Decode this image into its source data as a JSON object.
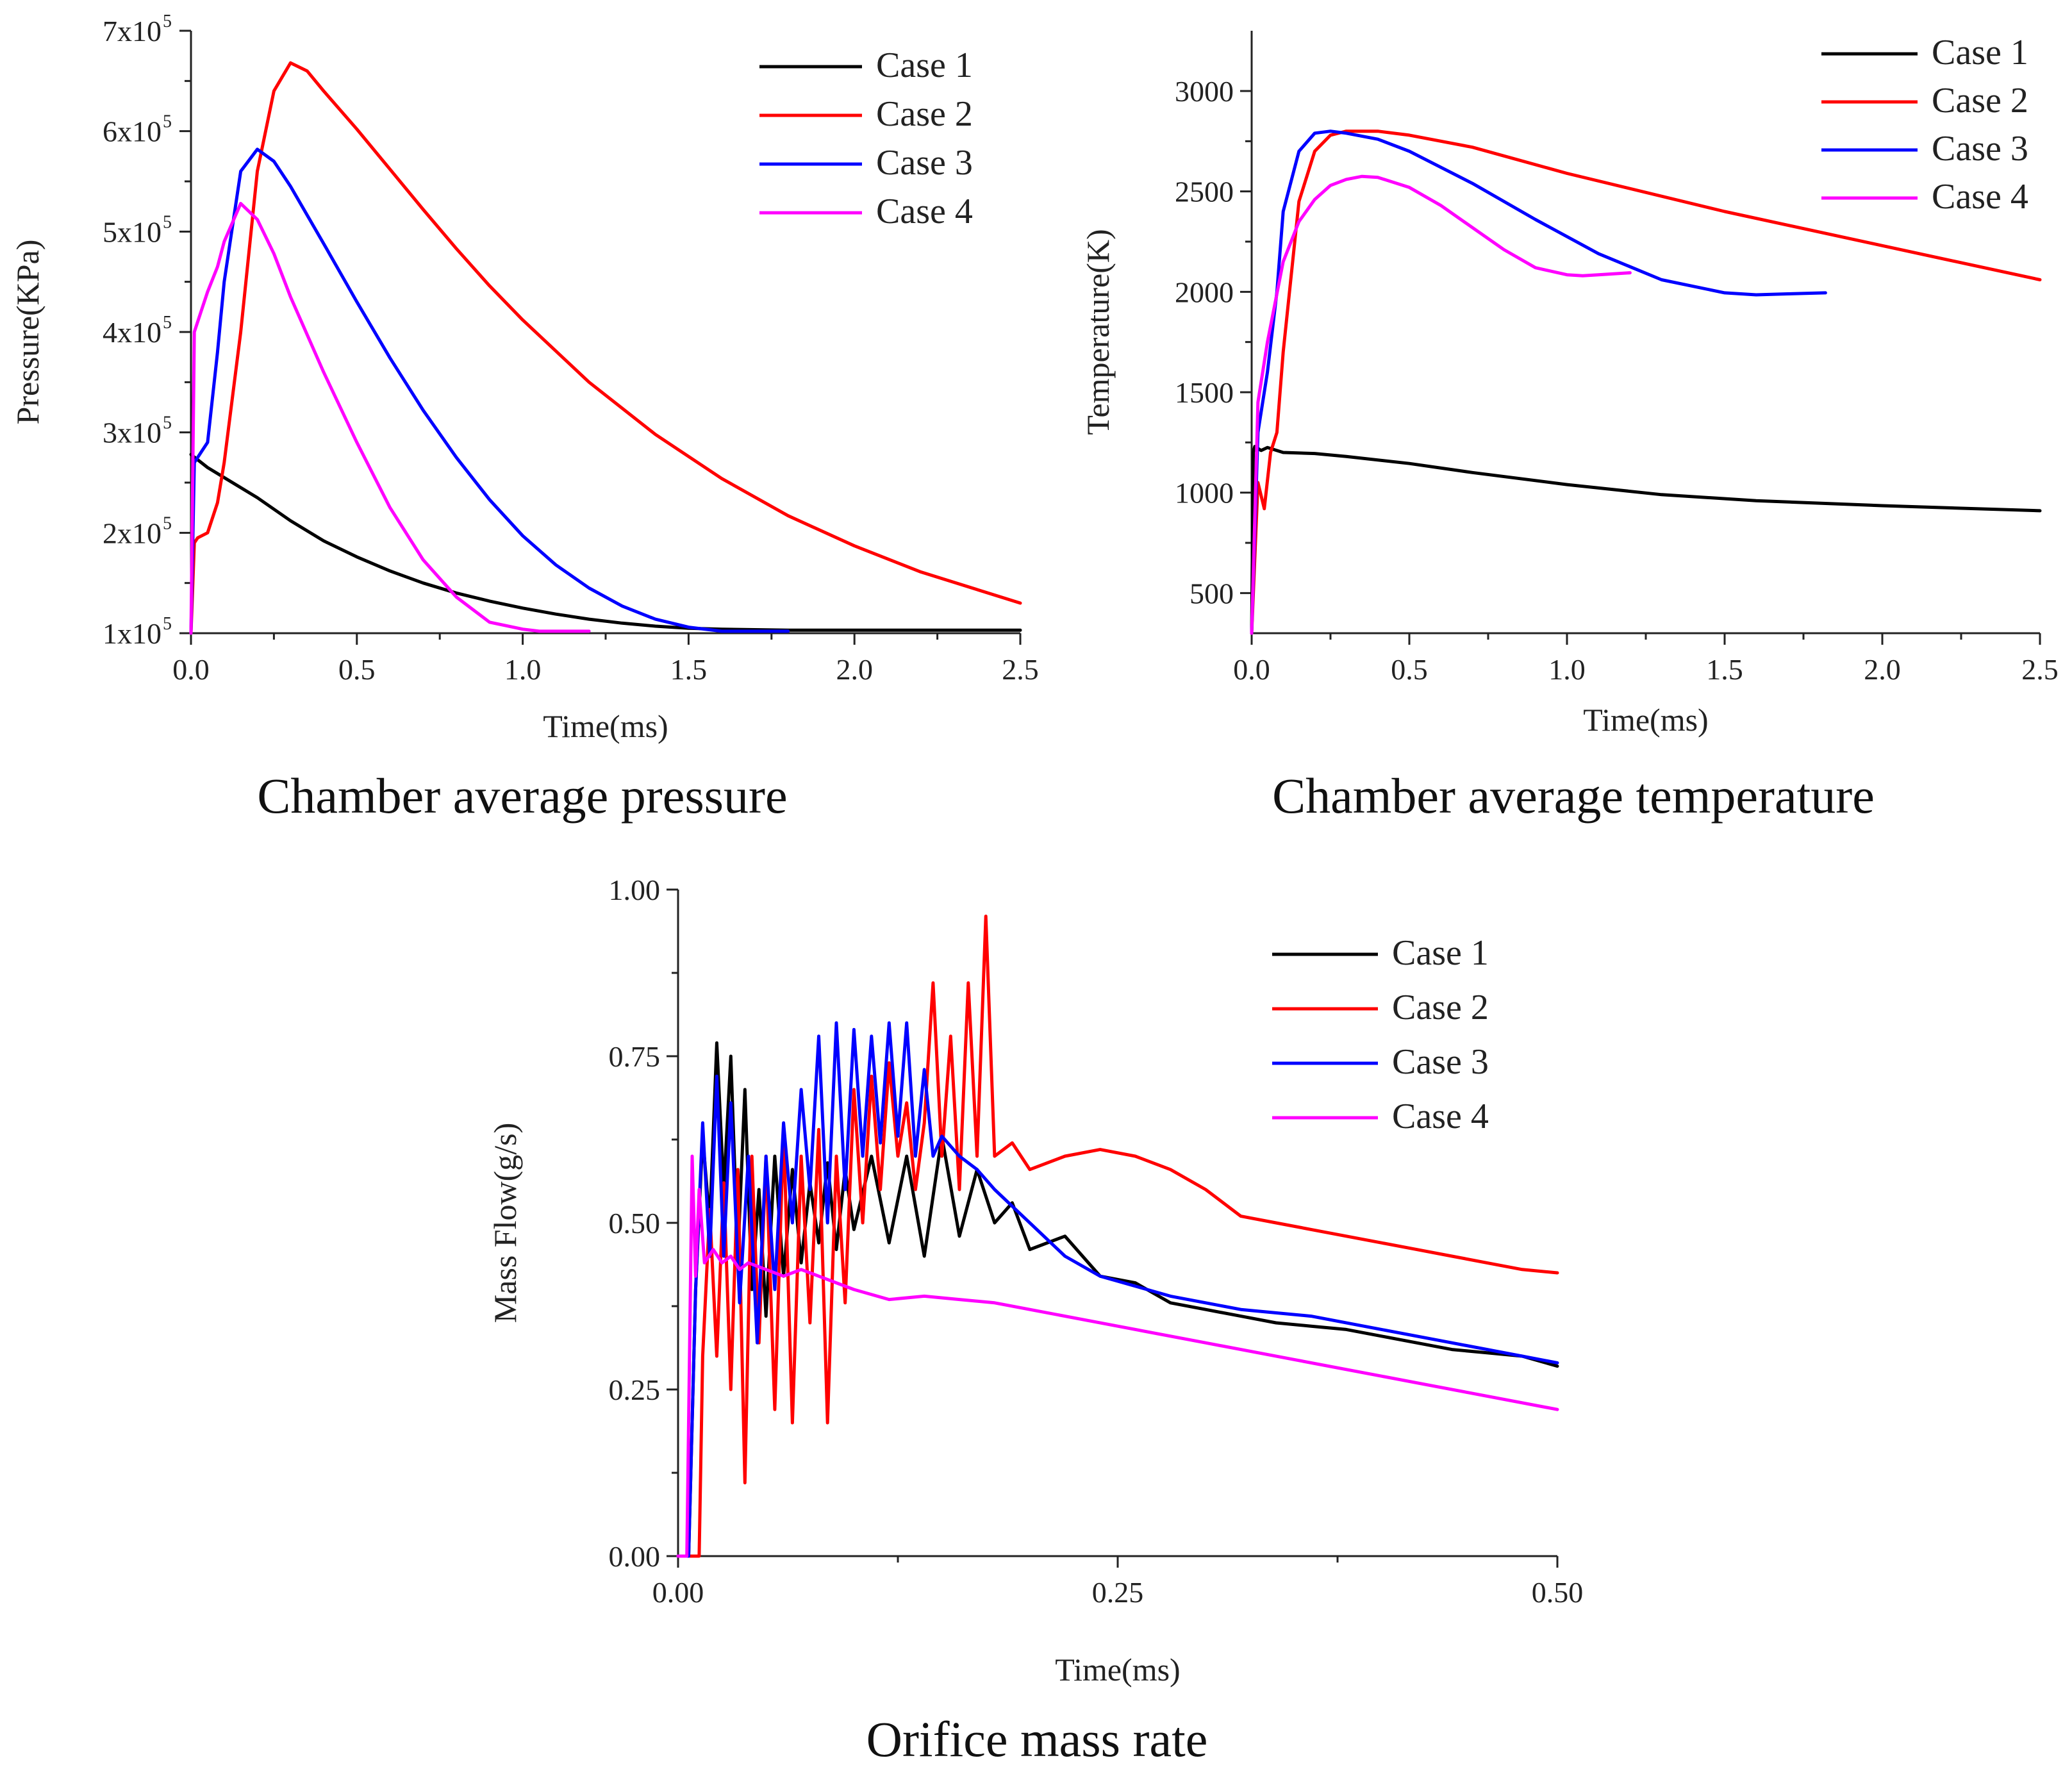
{
  "chart_data": [
    {
      "type": "line",
      "caption": "Chamber average pressure",
      "xlabel": "Time(ms)",
      "ylabel": "Pressure(KPa)",
      "xlim": [
        0,
        2.5
      ],
      "ylim": [
        100000,
        700000
      ],
      "xticks": [
        "0.0",
        "0.5",
        "1.0",
        "1.5",
        "2.0",
        "2.5"
      ],
      "yticks": [
        {
          "value": 100000,
          "mant": "1x10",
          "exp": "5"
        },
        {
          "value": 200000,
          "mant": "2x10",
          "exp": "5"
        },
        {
          "value": 300000,
          "mant": "3x10",
          "exp": "5"
        },
        {
          "value": 400000,
          "mant": "4x10",
          "exp": "5"
        },
        {
          "value": 500000,
          "mant": "5x10",
          "exp": "5"
        },
        {
          "value": 600000,
          "mant": "6x10",
          "exp": "5"
        },
        {
          "value": 700000,
          "mant": "7x10",
          "exp": "5"
        }
      ],
      "legend_position": "top-right",
      "series": [
        {
          "name": "Case 1",
          "color": "#000000",
          "x": [
            0,
            0.05,
            0.1,
            0.2,
            0.3,
            0.4,
            0.5,
            0.6,
            0.7,
            0.8,
            0.9,
            1.0,
            1.1,
            1.2,
            1.3,
            1.4,
            1.5,
            1.6,
            1.8,
            2.0,
            2.2,
            2.5
          ],
          "y": [
            278000,
            265000,
            255000,
            235000,
            212000,
            192000,
            176000,
            162000,
            150000,
            140000,
            132000,
            125000,
            119000,
            114000,
            110000,
            107000,
            105000,
            104000,
            103000,
            103000,
            103000,
            103000
          ]
        },
        {
          "name": "Case 2",
          "color": "#ff0000",
          "x": [
            0,
            0.01,
            0.02,
            0.05,
            0.08,
            0.1,
            0.15,
            0.2,
            0.25,
            0.3,
            0.35,
            0.4,
            0.5,
            0.6,
            0.7,
            0.8,
            0.9,
            1.0,
            1.2,
            1.4,
            1.6,
            1.8,
            2.0,
            2.2,
            2.5
          ],
          "y": [
            100000,
            190000,
            195000,
            200000,
            230000,
            270000,
            400000,
            560000,
            640000,
            668000,
            660000,
            640000,
            602000,
            562000,
            522000,
            483000,
            446000,
            412000,
            350000,
            298000,
            254000,
            217000,
            187000,
            161000,
            130000
          ]
        },
        {
          "name": "Case 3",
          "color": "#0000ff",
          "x": [
            0,
            0.01,
            0.03,
            0.05,
            0.08,
            0.1,
            0.15,
            0.2,
            0.25,
            0.3,
            0.4,
            0.5,
            0.6,
            0.7,
            0.8,
            0.9,
            1.0,
            1.1,
            1.2,
            1.3,
            1.4,
            1.5,
            1.6,
            1.7,
            1.8
          ],
          "y": [
            100000,
            270000,
            280000,
            290000,
            380000,
            450000,
            560000,
            582000,
            570000,
            545000,
            488000,
            430000,
            374000,
            322000,
            275000,
            233000,
            197000,
            168000,
            145000,
            127000,
            114000,
            106000,
            102000,
            102000,
            102000
          ]
        },
        {
          "name": "Case 4",
          "color": "#ff00ff",
          "x": [
            0,
            0.01,
            0.03,
            0.05,
            0.08,
            0.1,
            0.15,
            0.2,
            0.25,
            0.3,
            0.4,
            0.5,
            0.6,
            0.7,
            0.8,
            0.9,
            1.0,
            1.05,
            1.1,
            1.2
          ],
          "y": [
            100000,
            400000,
            420000,
            440000,
            465000,
            490000,
            528000,
            512000,
            478000,
            435000,
            360000,
            290000,
            225000,
            173000,
            136000,
            111000,
            104000,
            102000,
            102000,
            102000
          ]
        }
      ]
    },
    {
      "type": "line",
      "caption": "Chamber average temperature",
      "xlabel": "Time(ms)",
      "ylabel": "Temperature(K)",
      "xlim": [
        0,
        2.5
      ],
      "ylim": [
        300,
        3300
      ],
      "xticks": [
        "0.0",
        "0.5",
        "1.0",
        "1.5",
        "2.0",
        "2.5"
      ],
      "yticks": [
        "500",
        "1000",
        "1500",
        "2000",
        "2500",
        "3000"
      ],
      "legend_position": "top-right",
      "series": [
        {
          "name": "Case 1",
          "color": "#000000",
          "x": [
            0,
            0.005,
            0.01,
            0.03,
            0.05,
            0.1,
            0.2,
            0.3,
            0.5,
            0.7,
            1.0,
            1.3,
            1.6,
            2.0,
            2.5
          ],
          "y": [
            300,
            1200,
            1230,
            1210,
            1225,
            1200,
            1195,
            1180,
            1145,
            1100,
            1040,
            990,
            960,
            935,
            910
          ]
        },
        {
          "name": "Case 2",
          "color": "#ff0000",
          "x": [
            0,
            0.02,
            0.04,
            0.06,
            0.08,
            0.1,
            0.15,
            0.2,
            0.25,
            0.3,
            0.4,
            0.5,
            0.7,
            1.0,
            1.5,
            2.0,
            2.5
          ],
          "y": [
            300,
            1050,
            920,
            1200,
            1300,
            1700,
            2450,
            2700,
            2780,
            2800,
            2800,
            2780,
            2720,
            2590,
            2400,
            2230,
            2060
          ]
        },
        {
          "name": "Case 3",
          "color": "#0000ff",
          "x": [
            0,
            0.02,
            0.05,
            0.08,
            0.1,
            0.15,
            0.2,
            0.25,
            0.3,
            0.4,
            0.5,
            0.7,
            0.9,
            1.1,
            1.3,
            1.5,
            1.6,
            1.7,
            1.82
          ],
          "y": [
            300,
            1300,
            1600,
            2000,
            2400,
            2700,
            2790,
            2800,
            2790,
            2760,
            2700,
            2540,
            2360,
            2190,
            2060,
            1995,
            1985,
            1990,
            1995
          ]
        },
        {
          "name": "Case 4",
          "color": "#ff00ff",
          "x": [
            0,
            0.02,
            0.05,
            0.1,
            0.15,
            0.2,
            0.25,
            0.3,
            0.35,
            0.4,
            0.5,
            0.6,
            0.7,
            0.8,
            0.9,
            1.0,
            1.05,
            1.1,
            1.2
          ],
          "y": [
            300,
            1450,
            1750,
            2150,
            2350,
            2460,
            2530,
            2560,
            2575,
            2570,
            2520,
            2430,
            2320,
            2210,
            2120,
            2085,
            2080,
            2085,
            2095
          ]
        }
      ]
    },
    {
      "type": "line",
      "caption": "Orifice mass rate",
      "xlabel": "Time(ms)",
      "ylabel": "Mass Flow(g/s)",
      "xlim": [
        0,
        0.5
      ],
      "ylim": [
        0,
        1.0
      ],
      "xticks": [
        "0.00",
        "0.25",
        "0.50"
      ],
      "yticks": [
        "0.00",
        "0.25",
        "0.50",
        "0.75",
        "1.00"
      ],
      "legend_position": "top-right",
      "series": [
        {
          "name": "Case 1",
          "color": "#000000",
          "x": [
            0,
            0.006,
            0.01,
            0.014,
            0.018,
            0.022,
            0.026,
            0.03,
            0.034,
            0.038,
            0.042,
            0.046,
            0.05,
            0.055,
            0.06,
            0.065,
            0.07,
            0.075,
            0.08,
            0.085,
            0.09,
            0.095,
            0.1,
            0.11,
            0.12,
            0.13,
            0.14,
            0.15,
            0.16,
            0.17,
            0.18,
            0.19,
            0.2,
            0.22,
            0.24,
            0.26,
            0.28,
            0.3,
            0.32,
            0.34,
            0.36,
            0.38,
            0.4,
            0.42,
            0.44,
            0.46,
            0.48,
            0.5
          ],
          "y": [
            0,
            0,
            0.4,
            0.63,
            0.5,
            0.77,
            0.55,
            0.75,
            0.45,
            0.7,
            0.4,
            0.55,
            0.36,
            0.6,
            0.42,
            0.58,
            0.44,
            0.56,
            0.47,
            0.59,
            0.46,
            0.58,
            0.49,
            0.6,
            0.47,
            0.6,
            0.45,
            0.63,
            0.48,
            0.58,
            0.5,
            0.53,
            0.46,
            0.48,
            0.42,
            0.41,
            0.38,
            0.37,
            0.36,
            0.35,
            0.345,
            0.34,
            0.33,
            0.32,
            0.31,
            0.305,
            0.3,
            0.285
          ]
        },
        {
          "name": "Case 2",
          "color": "#ff0000",
          "x": [
            0,
            0.012,
            0.014,
            0.018,
            0.022,
            0.026,
            0.03,
            0.034,
            0.038,
            0.042,
            0.046,
            0.05,
            0.055,
            0.06,
            0.065,
            0.07,
            0.075,
            0.08,
            0.085,
            0.09,
            0.095,
            0.1,
            0.105,
            0.11,
            0.115,
            0.12,
            0.125,
            0.13,
            0.135,
            0.14,
            0.145,
            0.15,
            0.155,
            0.16,
            0.165,
            0.17,
            0.175,
            0.18,
            0.19,
            0.2,
            0.22,
            0.24,
            0.26,
            0.28,
            0.3,
            0.32,
            0.34,
            0.36,
            0.38,
            0.4,
            0.42,
            0.44,
            0.46,
            0.48,
            0.5
          ],
          "y": [
            0,
            0,
            0.3,
            0.52,
            0.3,
            0.56,
            0.25,
            0.58,
            0.11,
            0.6,
            0.32,
            0.6,
            0.22,
            0.64,
            0.2,
            0.6,
            0.35,
            0.64,
            0.2,
            0.6,
            0.38,
            0.7,
            0.5,
            0.72,
            0.55,
            0.74,
            0.6,
            0.68,
            0.55,
            0.65,
            0.86,
            0.6,
            0.78,
            0.55,
            0.86,
            0.6,
            0.96,
            0.6,
            0.62,
            0.58,
            0.6,
            0.61,
            0.6,
            0.58,
            0.55,
            0.51,
            0.5,
            0.49,
            0.48,
            0.47,
            0.46,
            0.45,
            0.44,
            0.43,
            0.425
          ]
        },
        {
          "name": "Case 3",
          "color": "#0000ff",
          "x": [
            0,
            0.006,
            0.01,
            0.014,
            0.018,
            0.022,
            0.026,
            0.03,
            0.035,
            0.04,
            0.045,
            0.05,
            0.055,
            0.06,
            0.065,
            0.07,
            0.075,
            0.08,
            0.085,
            0.09,
            0.095,
            0.1,
            0.105,
            0.11,
            0.115,
            0.12,
            0.125,
            0.13,
            0.135,
            0.14,
            0.145,
            0.15,
            0.16,
            0.17,
            0.18,
            0.2,
            0.22,
            0.24,
            0.28,
            0.32,
            0.36,
            0.4,
            0.44,
            0.48,
            0.5
          ],
          "y": [
            0,
            0,
            0.4,
            0.65,
            0.45,
            0.72,
            0.45,
            0.68,
            0.38,
            0.6,
            0.32,
            0.6,
            0.4,
            0.65,
            0.5,
            0.7,
            0.55,
            0.78,
            0.5,
            0.8,
            0.55,
            0.79,
            0.6,
            0.78,
            0.62,
            0.8,
            0.63,
            0.8,
            0.6,
            0.73,
            0.6,
            0.63,
            0.6,
            0.58,
            0.55,
            0.5,
            0.45,
            0.42,
            0.39,
            0.37,
            0.36,
            0.34,
            0.32,
            0.3,
            0.29
          ]
        },
        {
          "name": "Case 4",
          "color": "#ff00ff",
          "x": [
            0,
            0.005,
            0.008,
            0.01,
            0.012,
            0.015,
            0.02,
            0.025,
            0.03,
            0.035,
            0.04,
            0.05,
            0.06,
            0.07,
            0.08,
            0.09,
            0.1,
            0.12,
            0.14,
            0.16,
            0.18,
            0.2,
            0.25,
            0.3,
            0.35,
            0.4,
            0.45,
            0.5
          ],
          "y": [
            0,
            0,
            0.6,
            0.42,
            0.55,
            0.44,
            0.46,
            0.44,
            0.45,
            0.43,
            0.44,
            0.43,
            0.42,
            0.43,
            0.42,
            0.41,
            0.4,
            0.385,
            0.39,
            0.385,
            0.38,
            0.37,
            0.345,
            0.32,
            0.295,
            0.27,
            0.245,
            0.22
          ]
        }
      ]
    }
  ]
}
